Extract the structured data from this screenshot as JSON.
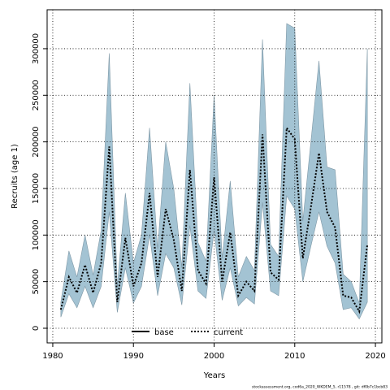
{
  "chart_data": {
    "type": "band-line",
    "x_label": "Years",
    "y_label": "Recruits (age 1)",
    "footer": "stockassessment.org, cod6a_2020_WKDEM_5, r11578 , git: df0b7c1bcb83",
    "x": [
      1981,
      1982,
      1983,
      1984,
      1985,
      1986,
      1987,
      1988,
      1989,
      1990,
      1991,
      1992,
      1993,
      1994,
      1995,
      1996,
      1997,
      1998,
      1999,
      2000,
      2001,
      2002,
      2003,
      2004,
      2005,
      2006,
      2007,
      2008,
      2009,
      2010,
      2011,
      2012,
      2013,
      2014,
      2015,
      2016,
      2017,
      2018,
      2019
    ],
    "series": [
      {
        "name": "current",
        "color": "#000000",
        "band_color": "#a3c3d3",
        "values": [
          20000,
          55000,
          38000,
          68000,
          38000,
          70000,
          195000,
          28000,
          97000,
          45000,
          70000,
          145000,
          55000,
          128000,
          95000,
          40000,
          170000,
          62000,
          48000,
          162000,
          50000,
          103000,
          35000,
          50000,
          40000,
          208000,
          60000,
          52000,
          215000,
          203000,
          75000,
          130000,
          188000,
          125000,
          108000,
          35000,
          33000,
          18000,
          90000
        ],
        "lower": [
          12000,
          37000,
          22000,
          45000,
          22000,
          45000,
          125000,
          17000,
          65000,
          27000,
          45000,
          100000,
          35000,
          80000,
          65000,
          25000,
          110000,
          40000,
          32000,
          105000,
          30000,
          65000,
          24000,
          33000,
          26000,
          135000,
          40000,
          35000,
          142000,
          128000,
          50000,
          88000,
          125000,
          88000,
          70000,
          20000,
          22000,
          10000,
          28000
        ],
        "upper": [
          28000,
          83000,
          55000,
          100000,
          57000,
          105000,
          295000,
          45000,
          145000,
          70000,
          100000,
          215000,
          85000,
          200000,
          150000,
          65000,
          263000,
          92000,
          72000,
          250000,
          75000,
          158000,
          55000,
          77000,
          62000,
          310000,
          90000,
          77000,
          327000,
          322000,
          115000,
          200000,
          287000,
          173000,
          170000,
          58000,
          50000,
          27000,
          300000
        ]
      }
    ],
    "legend_items": [
      {
        "name": "base",
        "style": "solid"
      },
      {
        "name": "current",
        "style": "dotted"
      }
    ],
    "xlim": [
      1979.3,
      2020.8
    ],
    "ylim": [
      -15700,
      341800
    ],
    "xticks": [
      1980,
      1990,
      2000,
      2010,
      2020
    ],
    "yticks": [
      0,
      50000,
      100000,
      150000,
      200000,
      250000,
      300000
    ],
    "grid": true
  }
}
